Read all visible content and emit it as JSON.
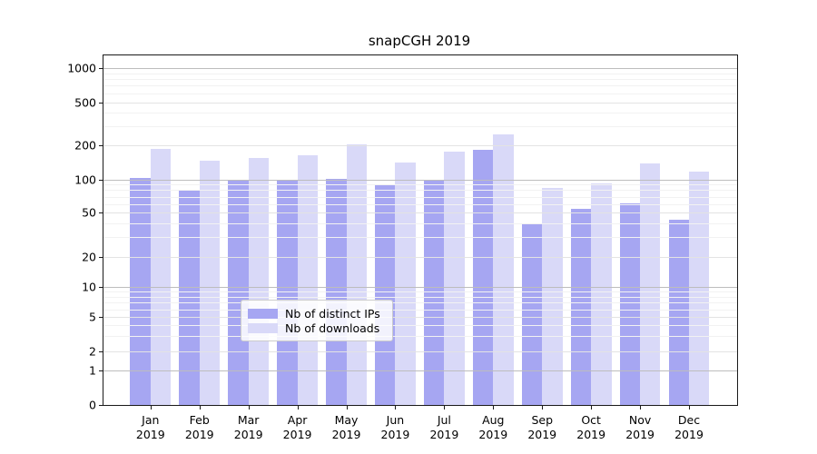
{
  "title": "snapCGH 2019",
  "colors": {
    "distinct_ips": "#a6a6f2",
    "downloads": "#d9d9f8",
    "grid_major": "#bdbdbd",
    "grid_mid": "#e3e3e3",
    "grid_minor": "#f2f2f2"
  },
  "legend": {
    "items": [
      {
        "label": "Nb of distinct IPs",
        "color": "#a6a6f2"
      },
      {
        "label": "Nb of downloads",
        "color": "#d9d9f8"
      }
    ]
  },
  "y_axis": {
    "tick_values": [
      0,
      1,
      2,
      5,
      10,
      20,
      50,
      100,
      200,
      500,
      1000
    ],
    "tick_labels": [
      "0",
      "1",
      "2",
      "5",
      "10",
      "20",
      "50",
      "100",
      "200",
      "500",
      "1000"
    ]
  },
  "x_axis": {
    "year": "2019",
    "months": [
      "Jan",
      "Feb",
      "Mar",
      "Apr",
      "May",
      "Jun",
      "Jul",
      "Aug",
      "Sep",
      "Oct",
      "Nov",
      "Dec"
    ]
  },
  "chart_data": {
    "type": "bar",
    "title": "snapCGH 2019",
    "categories": [
      "Jan 2019",
      "Feb 2019",
      "Mar 2019",
      "Apr 2019",
      "May 2019",
      "Jun 2019",
      "Jul 2019",
      "Aug 2019",
      "Sep 2019",
      "Oct 2019",
      "Nov 2019",
      "Dec 2019"
    ],
    "series": [
      {
        "name": "Nb of distinct IPs",
        "color": "#a6a6f2",
        "values": [
          104,
          79,
          97,
          99,
          102,
          90,
          99,
          183,
          39,
          54,
          61,
          43
        ]
      },
      {
        "name": "Nb of downloads",
        "color": "#d9d9f8",
        "values": [
          188,
          148,
          154,
          164,
          207,
          141,
          178,
          252,
          84,
          92,
          139,
          117
        ]
      }
    ],
    "xlabel": "",
    "ylabel": "",
    "yscale": "symlog",
    "ylim": [
      0,
      1300
    ],
    "grid": "on",
    "legend_position": "lower center"
  }
}
